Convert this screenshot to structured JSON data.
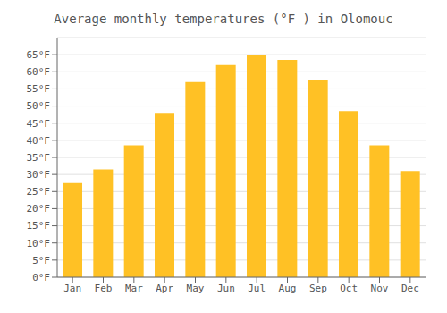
{
  "chart_data": {
    "type": "bar",
    "title": "Average monthly temperatures (°F ) in Olomouc",
    "categories": [
      "Jan",
      "Feb",
      "Mar",
      "Apr",
      "May",
      "Jun",
      "Jul",
      "Aug",
      "Sep",
      "Oct",
      "Nov",
      "Dec"
    ],
    "values": [
      27.5,
      31.5,
      38.5,
      48.0,
      57.0,
      62.0,
      65.0,
      63.5,
      57.5,
      48.5,
      38.5,
      31.0
    ],
    "color": "#FFC125",
    "ylim": [
      0,
      70
    ],
    "yticks": [
      {
        "value": 0,
        "label": "0°F"
      },
      {
        "value": 5,
        "label": "5°F"
      },
      {
        "value": 10,
        "label": "10°F"
      },
      {
        "value": 15,
        "label": "15°F"
      },
      {
        "value": 20,
        "label": "20°F"
      },
      {
        "value": 25,
        "label": "25°F"
      },
      {
        "value": 30,
        "label": "30°F"
      },
      {
        "value": 35,
        "label": "35°F"
      },
      {
        "value": 40,
        "label": "40°F"
      },
      {
        "value": 45,
        "label": "45°F"
      },
      {
        "value": 50,
        "label": "50°F"
      },
      {
        "value": 55,
        "label": "55°F"
      },
      {
        "value": 60,
        "label": "60°F"
      },
      {
        "value": 65,
        "label": "65°F"
      }
    ],
    "grid": true
  }
}
